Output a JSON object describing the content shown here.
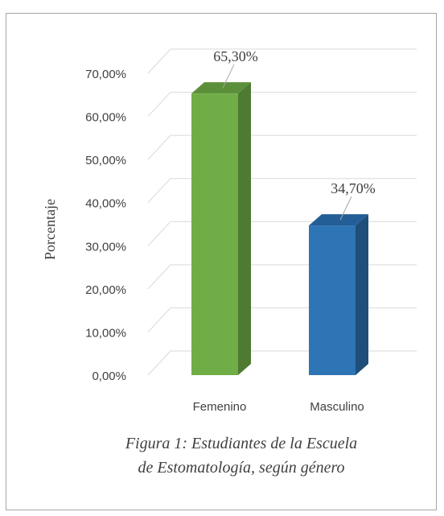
{
  "chart_data": {
    "type": "bar",
    "style": "3d-column",
    "categories": [
      "Femenino",
      "Masculino"
    ],
    "values": [
      65.3,
      34.7
    ],
    "data_labels": [
      "65,30%",
      "34,70%"
    ],
    "colors": [
      "#70ad47",
      "#2e75b6"
    ],
    "side_colors": [
      "#4e7a31",
      "#1f4e79"
    ],
    "top_colors": [
      "#5c8f3a",
      "#245e96"
    ],
    "ylabel": "Porcentaje",
    "ylim": [
      0,
      70
    ],
    "yticks": [
      0,
      10,
      20,
      30,
      40,
      50,
      60,
      70
    ],
    "ytick_labels": [
      "0,00%",
      "10,00%",
      "20,00%",
      "30,00%",
      "40,00%",
      "50,00%",
      "60,00%",
      "70,00%"
    ],
    "grid": true,
    "legend": "none"
  },
  "caption": {
    "line1": "Figura 1: Estudiantes de la Escuela",
    "line2": "de Estomatología, según género"
  }
}
